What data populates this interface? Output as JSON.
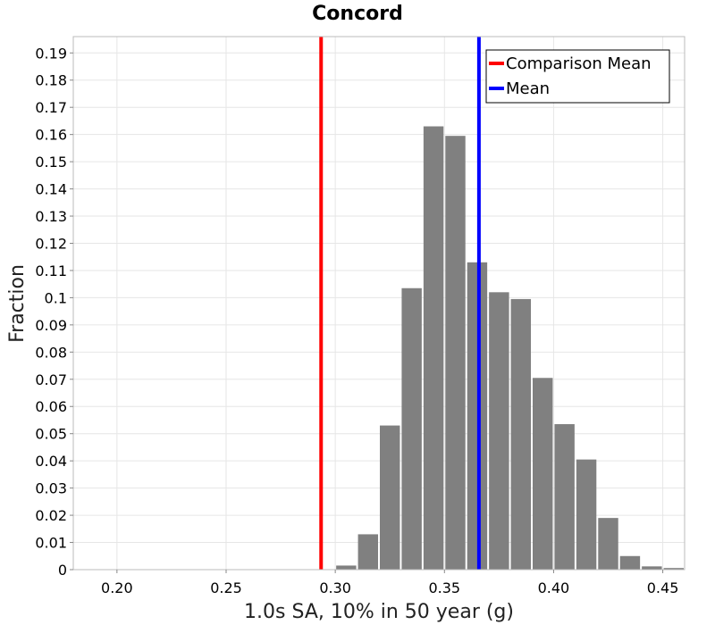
{
  "chart_data": {
    "type": "bar",
    "title": "Concord",
    "xlabel": "1.0s SA, 10% in 50 year (g)",
    "ylabel": "Fraction",
    "xlim": [
      0.18,
      0.46
    ],
    "ylim": [
      0,
      0.196
    ],
    "x_ticks": [
      0.2,
      0.25,
      0.3,
      0.35,
      0.4,
      0.45
    ],
    "x_tick_labels": [
      "0.20",
      "0.25",
      "0.30",
      "0.35",
      "0.40",
      "0.45"
    ],
    "y_ticks": [
      0,
      0.01,
      0.02,
      0.03,
      0.04,
      0.05,
      0.06,
      0.07,
      0.08,
      0.09,
      0.1,
      0.11,
      0.12,
      0.13,
      0.14,
      0.15,
      0.16,
      0.17,
      0.18,
      0.19
    ],
    "y_tick_labels": [
      "0",
      "0.01",
      "0.02",
      "0.03",
      "0.04",
      "0.05",
      "0.06",
      "0.07",
      "0.08",
      "0.09",
      "0.1",
      "0.11",
      "0.12",
      "0.13",
      "0.14",
      "0.15",
      "0.16",
      "0.17",
      "0.18",
      "0.19"
    ],
    "bin_width": 0.01,
    "x": [
      0.305,
      0.315,
      0.325,
      0.335,
      0.345,
      0.355,
      0.365,
      0.375,
      0.385,
      0.395,
      0.405,
      0.415,
      0.425,
      0.435,
      0.445,
      0.455
    ],
    "values": [
      0.0015,
      0.013,
      0.053,
      0.1035,
      0.163,
      0.1595,
      0.113,
      0.102,
      0.0995,
      0.0705,
      0.0535,
      0.0405,
      0.019,
      0.005,
      0.0012,
      0.0006
    ],
    "bar_color": "#808080",
    "vertical_lines": [
      {
        "name": "Comparison Mean",
        "x": 0.2935,
        "color": "#ff0000"
      },
      {
        "name": "Mean",
        "x": 0.3658,
        "color": "#0000ff"
      }
    ],
    "legend_position": "top-right",
    "grid": true
  }
}
